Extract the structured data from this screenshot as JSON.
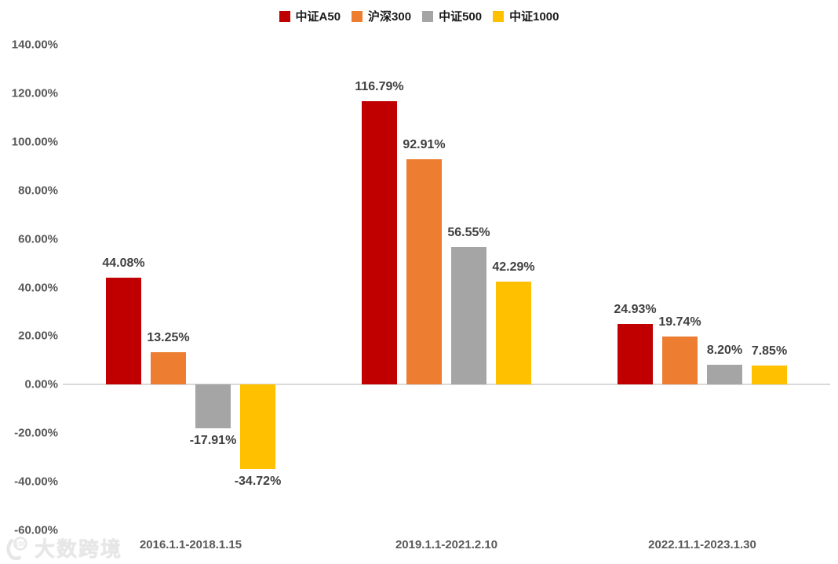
{
  "watermark": {
    "text": "大数跨境"
  },
  "chart_data": {
    "type": "bar",
    "title": "",
    "xlabel": "",
    "ylabel": "",
    "grid": false,
    "legend_position": "top",
    "categories": [
      "2016.1.1-2018.1.15",
      "2019.1.1-2021.2.10",
      "2022.11.1-2023.1.30"
    ],
    "series": [
      {
        "name": "中证A50",
        "color": "#C00000",
        "values": [
          44.08,
          116.79,
          24.93
        ],
        "labels": [
          "44.08%",
          "116.79%",
          "24.93%"
        ]
      },
      {
        "name": "沪深300",
        "color": "#ED7D31",
        "values": [
          13.25,
          92.91,
          19.74
        ],
        "labels": [
          "13.25%",
          "92.91%",
          "19.74%"
        ]
      },
      {
        "name": "中证500",
        "color": "#A5A5A5",
        "values": [
          -17.91,
          56.55,
          8.2
        ],
        "labels": [
          "-17.91%",
          "56.55%",
          "8.20%"
        ]
      },
      {
        "name": "中证1000",
        "color": "#FFC000",
        "values": [
          -34.72,
          42.29,
          7.85
        ],
        "labels": [
          "-34.72%",
          "42.29%",
          "7.85%"
        ]
      }
    ],
    "ylim": [
      -60,
      140
    ],
    "yticks": [
      {
        "value": 140,
        "label": "140.00%"
      },
      {
        "value": 120,
        "label": "120.00%"
      },
      {
        "value": 100,
        "label": "100.00%"
      },
      {
        "value": 80,
        "label": "80.00%"
      },
      {
        "value": 60,
        "label": "60.00%"
      },
      {
        "value": 40,
        "label": "40.00%"
      },
      {
        "value": 20,
        "label": "20.00%"
      },
      {
        "value": 0,
        "label": "0.00%"
      },
      {
        "value": -20,
        "label": "-20.00%"
      },
      {
        "value": -40,
        "label": "-40.00%"
      },
      {
        "value": -60,
        "label": "-60.00%"
      }
    ]
  }
}
